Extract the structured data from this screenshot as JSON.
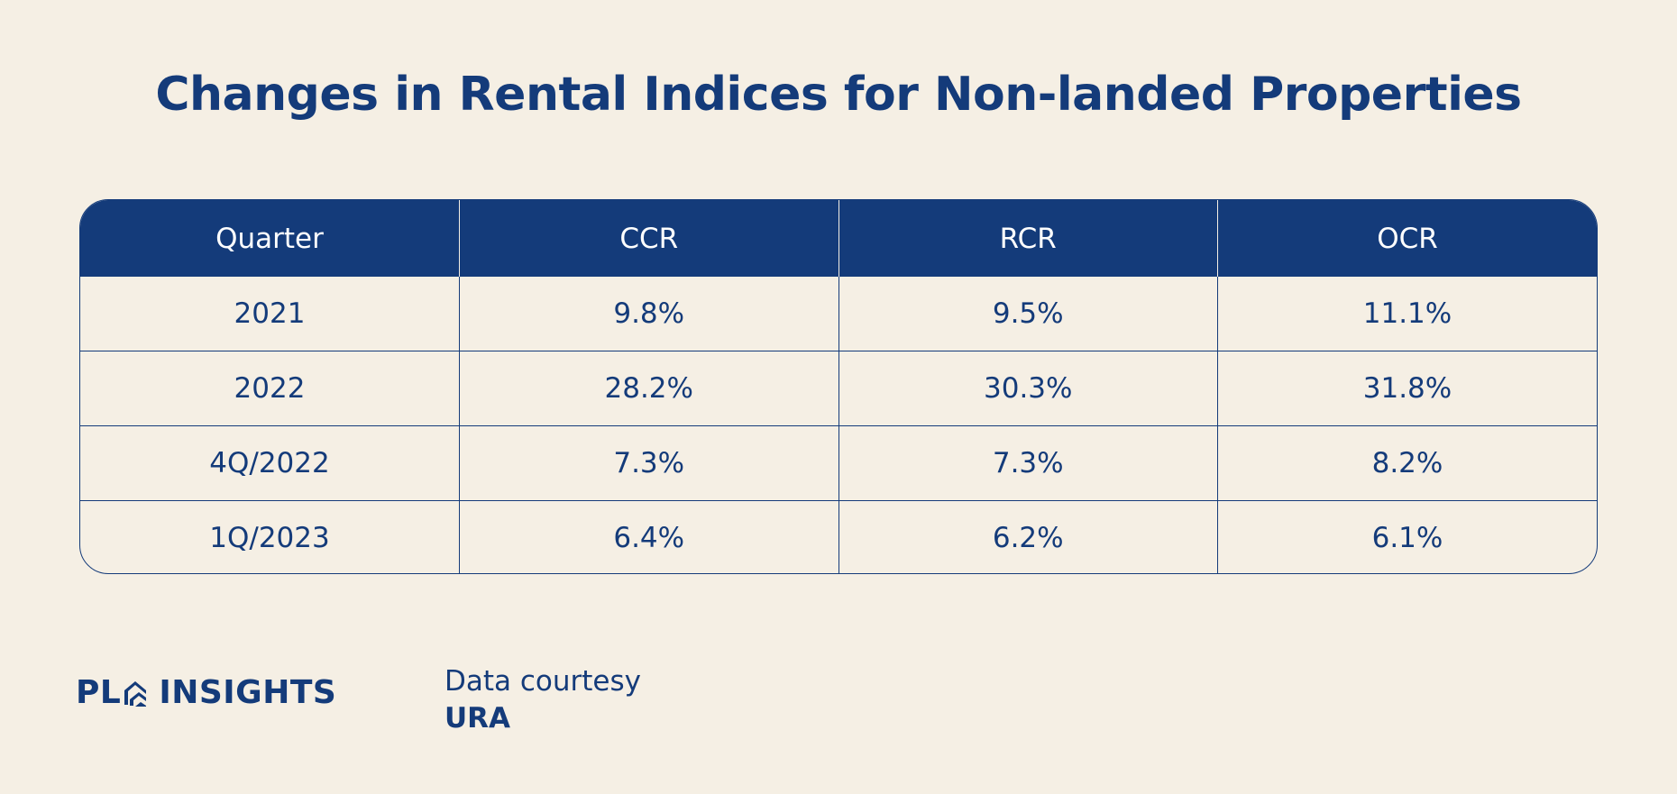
{
  "chart_data": {
    "type": "table",
    "title": "Changes in Rental Indices for Non-landed Properties",
    "columns": [
      "Quarter",
      "CCR",
      "RCR",
      "OCR"
    ],
    "rows": [
      [
        "2021",
        "9.8%",
        "9.5%",
        "11.1%"
      ],
      [
        "2022",
        "28.2%",
        "30.3%",
        "31.8%"
      ],
      [
        "4Q/2022",
        "7.3%",
        "7.3%",
        "8.2%"
      ],
      [
        "1Q/2023",
        "6.4%",
        "6.2%",
        "6.1%"
      ]
    ]
  },
  "branding": {
    "logo_left": "PL",
    "logo_right": "INSIGHTS",
    "logo_icon": "house-chevron-icon"
  },
  "source": {
    "label": "Data courtesy",
    "value": "URA"
  },
  "colors": {
    "navy": "#143b7a",
    "background": "#f5efe4",
    "header_text": "#ffffff"
  }
}
